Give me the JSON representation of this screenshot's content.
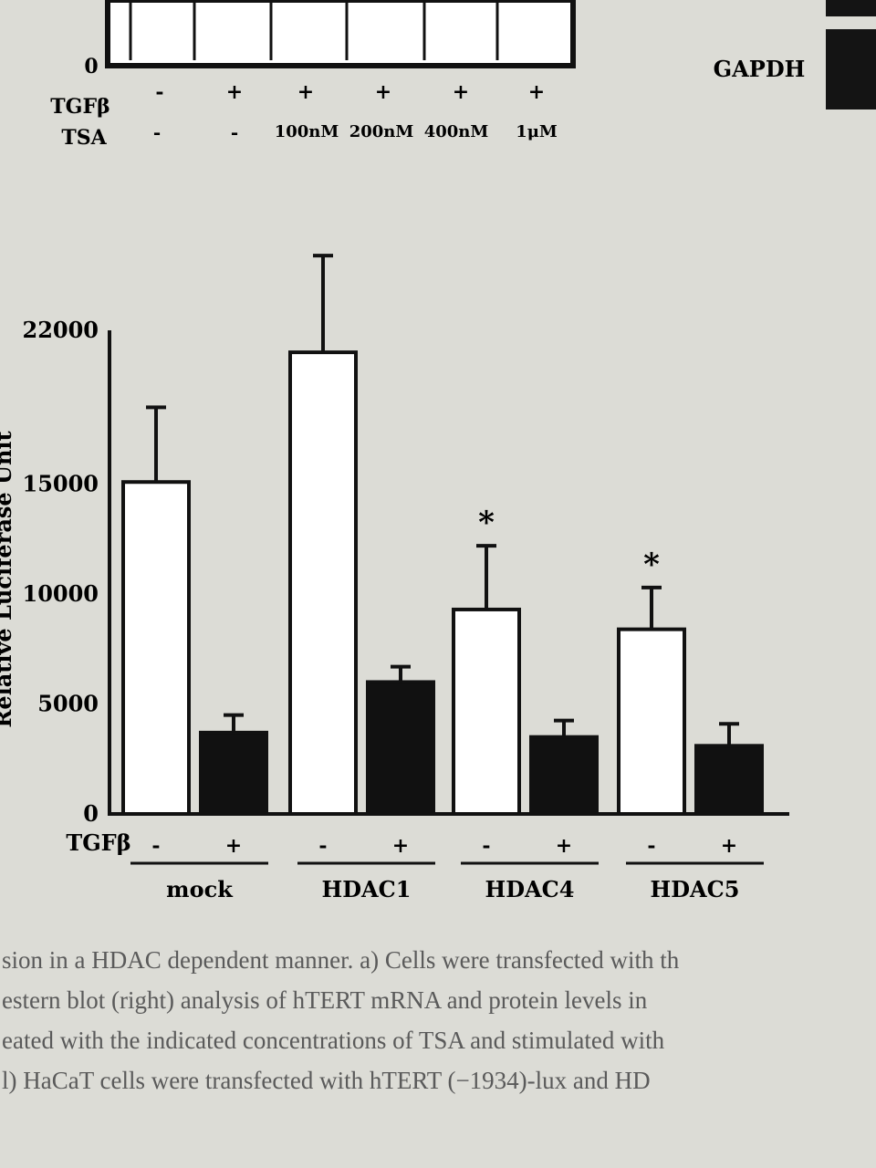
{
  "top_panel": {
    "row_labels": [
      "TGFβ",
      "TSA"
    ],
    "tgfb_values": [
      "-",
      "+",
      "+",
      "+",
      "+",
      "+"
    ],
    "tsa_values": [
      "-",
      "-",
      "100nM",
      "200nM",
      "400nM",
      "1μM"
    ],
    "y_zero_label": "0",
    "blot_label": "GAPDH"
  },
  "chart_data": {
    "type": "bar",
    "categories": [
      "mock",
      "HDAC1",
      "HDAC4",
      "HDAC5"
    ],
    "ylabel": "Relative Luciferase Unit",
    "yticks": [
      0,
      5000,
      10000,
      15000,
      22000
    ],
    "ylim": [
      0,
      22000
    ],
    "series": [
      {
        "treatment": "-",
        "values": [
          15100,
          21000,
          9300,
          8400
        ],
        "errors": [
          3400,
          4400,
          2900,
          1900
        ],
        "color": "#ffffff"
      },
      {
        "treatment": "+",
        "values": [
          3700,
          6000,
          3500,
          3100
        ],
        "errors": [
          800,
          700,
          750,
          1000
        ],
        "color": "#111111"
      }
    ],
    "significance": [
      "",
      "",
      "*",
      "*"
    ],
    "x_row_label": "TGFβ"
  },
  "caption_lines": [
    "sion in a HDAC dependent manner. a) Cells were transfected with th",
    "estern blot (right) analysis of hTERT mRNA and protein levels in",
    "eated with the indicated concentrations of TSA and stimulated with",
    "l) HaCaT cells were transfected with hTERT (−1934)-lux and HD"
  ]
}
